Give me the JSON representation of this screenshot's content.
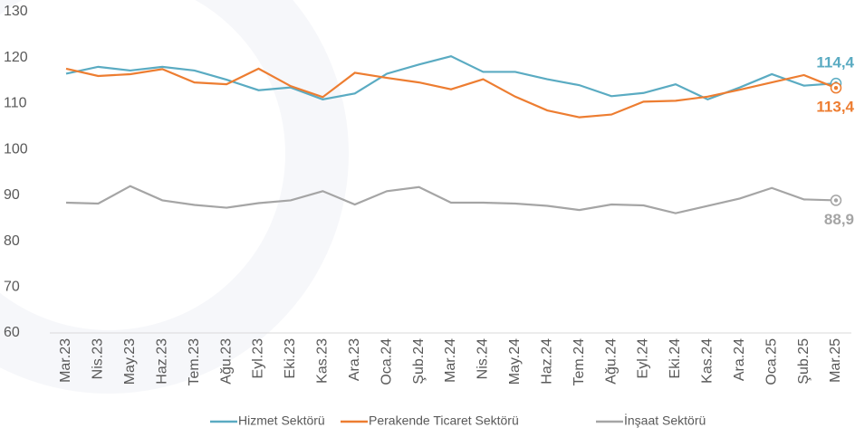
{
  "chart_data": {
    "type": "line",
    "categories": [
      "Mar.23",
      "Nis.23",
      "May.23",
      "Haz.23",
      "Tem.23",
      "Ağu.23",
      "Eyl.23",
      "Eki.23",
      "Kas.23",
      "Ara.23",
      "Oca.24",
      "Şub.24",
      "Mar.24",
      "Nis.24",
      "May.24",
      "Haz.24",
      "Tem.24",
      "Ağu.24",
      "Eyl.24",
      "Eki.24",
      "Kas.24",
      "Ara.24",
      "Oca.25",
      "Şub.25",
      "Mar.25"
    ],
    "series": [
      {
        "name": "Hizmet Sektörü",
        "color": "#5aabc2",
        "values": [
          116.5,
          118,
          117.2,
          118,
          117.2,
          115.2,
          112.9,
          113.5,
          110.9,
          112.2,
          116.5,
          118.5,
          120.3,
          116.9,
          116.9,
          115.3,
          114,
          111.6,
          112.3,
          114.2,
          110.9,
          113.5,
          116.4,
          113.9,
          114.4
        ],
        "value_labels": [
          null,
          null,
          null,
          null,
          null,
          null,
          null,
          null,
          null,
          null,
          null,
          null,
          null,
          null,
          null,
          null,
          null,
          null,
          null,
          null,
          null,
          null,
          null,
          null,
          "114,4"
        ]
      },
      {
        "name": "Perakende Ticaret Sektörü",
        "color": "#ed7d31",
        "values": [
          117.6,
          116,
          116.4,
          117.5,
          114.6,
          114.2,
          117.6,
          113.8,
          111.4,
          116.7,
          115.6,
          114.6,
          113.1,
          115.3,
          111.5,
          108.5,
          107,
          107.6,
          110.4,
          110.6,
          111.5,
          113,
          114.6,
          116.2,
          113.4
        ],
        "value_labels": [
          null,
          null,
          null,
          null,
          null,
          null,
          null,
          null,
          null,
          null,
          null,
          null,
          null,
          null,
          null,
          null,
          null,
          null,
          null,
          null,
          null,
          null,
          null,
          null,
          "113,4"
        ]
      },
      {
        "name": "İnşaat Sektörü",
        "color": "#a5a5a5",
        "values": [
          88.4,
          88.2,
          92,
          88.9,
          87.9,
          87.3,
          88.3,
          88.9,
          90.9,
          88,
          90.9,
          91.8,
          88.4,
          88.4,
          88.2,
          87.7,
          86.8,
          88,
          87.8,
          86.1,
          87.7,
          89.3,
          91.6,
          89.1,
          88.9
        ],
        "value_labels": [
          null,
          null,
          null,
          null,
          null,
          null,
          null,
          null,
          null,
          null,
          null,
          null,
          null,
          null,
          null,
          null,
          null,
          null,
          null,
          null,
          null,
          null,
          null,
          null,
          "88,9"
        ]
      }
    ],
    "ylim": [
      60,
      130
    ],
    "yticks": [
      60,
      70,
      80,
      90,
      100,
      110,
      120,
      130
    ],
    "grid": false,
    "legend": "bottom"
  }
}
